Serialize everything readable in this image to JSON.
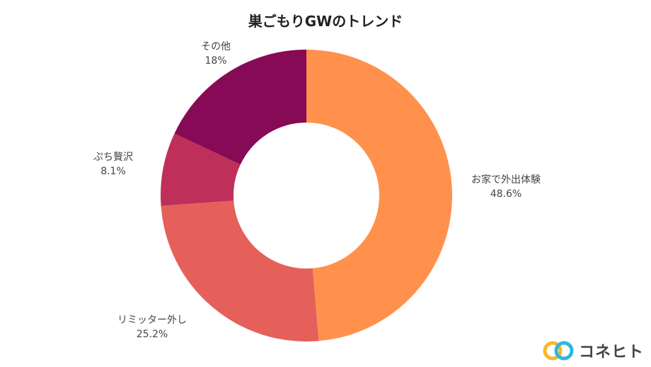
{
  "chart_data": {
    "type": "pie",
    "title": "巣ごもりGWのトレンド",
    "donut": true,
    "slices": [
      {
        "label": "お家で外出体験",
        "value": 48.6,
        "value_label": "48.6%",
        "color": "#FF914D"
      },
      {
        "label": "リミッター外し",
        "value": 25.2,
        "value_label": "25.2%",
        "color": "#E5605A"
      },
      {
        "label": "ぷち贅沢",
        "value": 8.1,
        "value_label": "8.1%",
        "color": "#BE3059"
      },
      {
        "label": "その他",
        "value": 18.0,
        "value_label": "18%",
        "color": "#870A56"
      }
    ]
  },
  "brand": {
    "name": "コネヒト",
    "colors": [
      "#F5B82E",
      "#2DB7E0"
    ]
  }
}
